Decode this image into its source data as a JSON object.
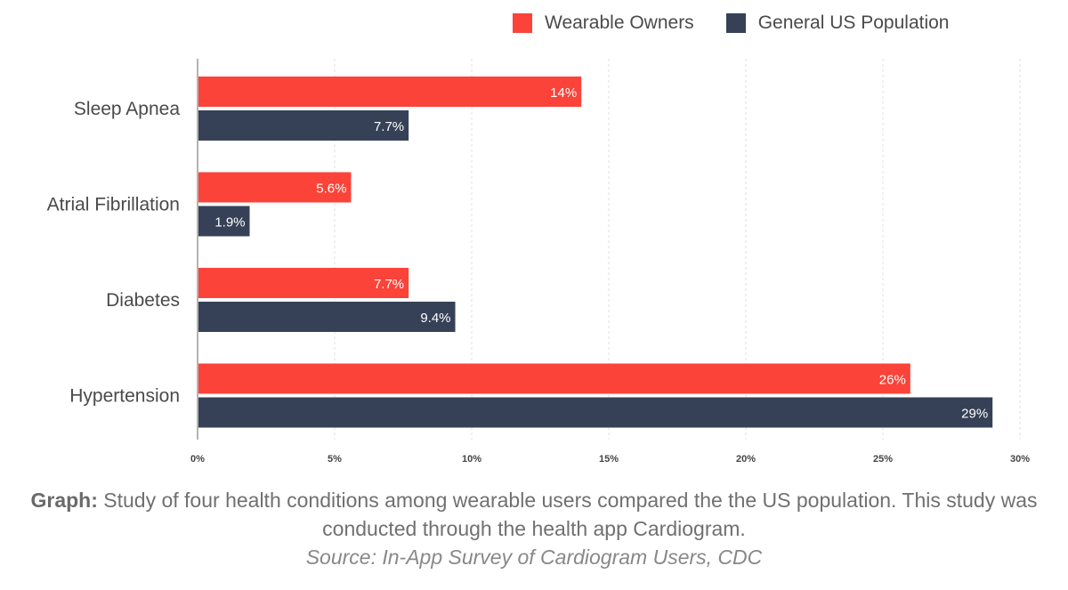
{
  "legend": [
    {
      "label": "Wearable Owners",
      "color": "#fb4339"
    },
    {
      "label": "General US Population",
      "color": "#364157"
    }
  ],
  "caption": {
    "lead": "Graph:",
    "text": "Study of four health conditions among wearable users compared the the US population. This study was conducted through the health app Cardiogram.",
    "source": "Source: In-App Survey of Cardiogram Users, CDC"
  },
  "chart_data": {
    "type": "bar",
    "orientation": "horizontal",
    "categories": [
      "Sleep Apnea",
      "Atrial Fibrillation",
      "Diabetes",
      "Hypertension"
    ],
    "series": [
      {
        "name": "Wearable Owners",
        "values": [
          14,
          5.6,
          7.7,
          26
        ],
        "labels": [
          "14%",
          "5.6%",
          "7.7%",
          "26%"
        ],
        "color": "#fb4339"
      },
      {
        "name": "General US Population",
        "values": [
          7.7,
          1.9,
          9.4,
          29
        ],
        "labels": [
          "7.7%",
          "1.9%",
          "9.4%",
          "29%"
        ],
        "color": "#364157"
      }
    ],
    "xlim": [
      0,
      30
    ],
    "xticks": [
      0,
      5,
      10,
      15,
      20,
      25,
      30
    ],
    "xtick_labels": [
      "0%",
      "5%",
      "10%",
      "15%",
      "20%",
      "25%",
      "30%"
    ],
    "grid": "vertical",
    "legend_position": "top-right"
  }
}
